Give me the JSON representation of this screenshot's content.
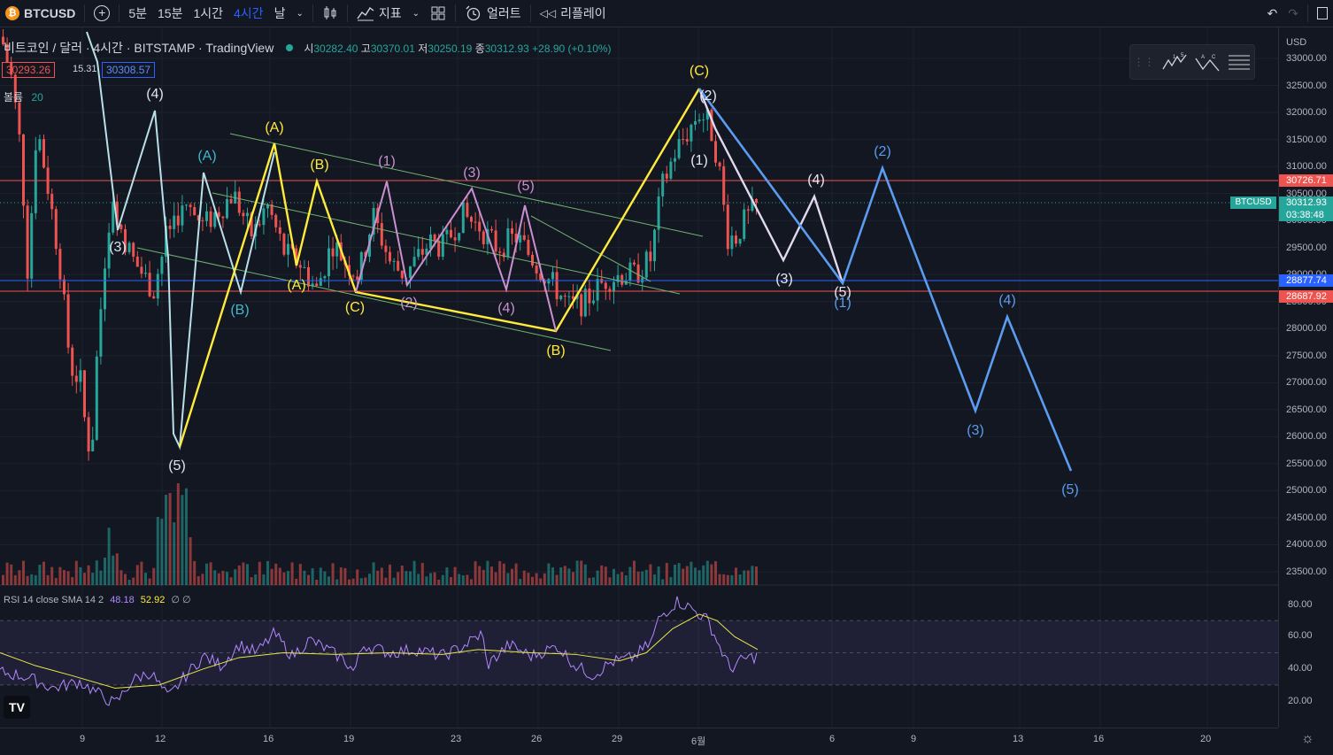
{
  "toolbar": {
    "symbol": "BTCUSD",
    "intervals": [
      "5분",
      "15분",
      "1시간",
      "4시간",
      "날"
    ],
    "active_interval": "4시간",
    "indicators_label": "지표",
    "alert_label": "얼러트",
    "replay_label": "리플레이"
  },
  "legend": {
    "title": "비트코인 / 달러 · 4시간 · BITSTAMP · TradingView",
    "o_label": "시",
    "o": "30282.40",
    "h_label": "고",
    "h": "30370.01",
    "l_label": "저",
    "l": "30250.19",
    "c_label": "종",
    "c": "30312.93",
    "change": "+28.90 (+0.10%)",
    "sell_price": "30293.26",
    "spread": "15.31",
    "buy_price": "30308.57",
    "volume_label": "볼륨",
    "volume_len": "20"
  },
  "rsi_legend": {
    "name": "RSI 14 close SMA 14 2",
    "value1": "48.18",
    "value2": "52.92",
    "extra": "∅ ∅"
  },
  "price_axis": {
    "currency": "USD",
    "ticks": [
      "33000.00",
      "32500.00",
      "32000.00",
      "31500.00",
      "31000.00",
      "30500.00",
      "30000.00",
      "29500.00",
      "29000.00",
      "28500.00",
      "28000.00",
      "27500.00",
      "27000.00",
      "26500.00",
      "26000.00",
      "25500.00",
      "25000.00",
      "24500.00",
      "24000.00",
      "23500.00"
    ],
    "rsi_ticks": [
      "80.00",
      "60.00",
      "40.00",
      "20.00"
    ],
    "tags": {
      "resistance": "30726.71",
      "symbol_tag": "BTCUSD",
      "last": "30312.93",
      "countdown": "03:38:48",
      "blue_line": "28877.74",
      "support": "28687.92"
    }
  },
  "time_axis": {
    "labels": [
      "9",
      "12",
      "16",
      "19",
      "23",
      "26",
      "29",
      "6월",
      "6",
      "9",
      "13",
      "16",
      "20"
    ]
  },
  "wave_labels": [
    "(3)",
    "(4)",
    "(5)",
    "(A)",
    "(B)",
    "(C)",
    "(1)",
    "(2)",
    "(3)",
    "(4)",
    "(5)"
  ],
  "chart_data": {
    "type": "candlestick",
    "ylim": [
      23200,
      33300
    ],
    "horizontal_lines": [
      30726.71,
      28877.74,
      28687.92
    ],
    "last_price": 30312.93
  },
  "colors": {
    "bg": "#131722",
    "up": "#26a69a",
    "down": "#ef5350",
    "yellow_wave": "#ffeb3b",
    "blue_wave": "#5b9cf0",
    "white_wave": "#e0d9ef",
    "purple_wave": "#c990d0",
    "teal_wave": "#3fb8c9"
  }
}
